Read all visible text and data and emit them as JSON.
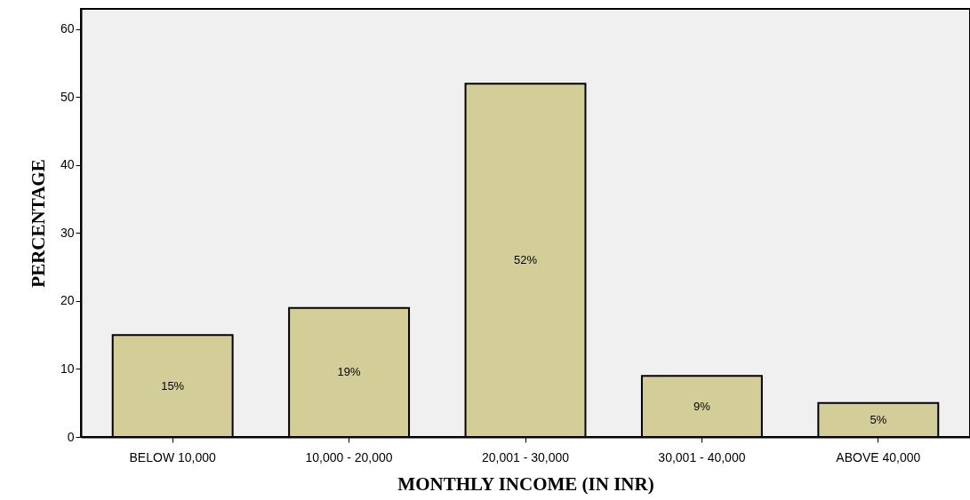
{
  "chart_data": {
    "type": "bar",
    "xlabel": "MONTHLY INCOME (IN INR)",
    "ylabel": "PERCENTAGE",
    "categories": [
      "BELOW 10,000",
      "10,000 - 20,000",
      "20,001 - 30,000",
      "30,001 - 40,000",
      "ABOVE 40,000"
    ],
    "values": [
      15,
      19,
      52,
      9,
      5
    ],
    "value_labels": [
      "15%",
      "19%",
      "52%",
      "9%",
      "5%"
    ],
    "color": "#d3ce97",
    "ylim": [
      0,
      63
    ],
    "yticks": [
      0,
      10,
      20,
      30,
      40,
      50,
      60
    ],
    "grid": false
  }
}
